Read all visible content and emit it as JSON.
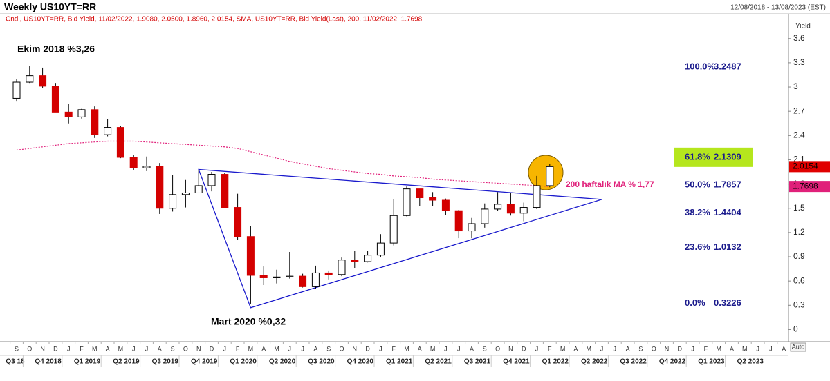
{
  "header": {
    "title": "Weekly US10YT=RR",
    "range": "12/08/2018 - 13/08/2023 (EST)"
  },
  "chart_data": {
    "type": "candlestick",
    "legend_text": "Cndl, US10YT=RR, Bid Yield, 11/02/2022, 1.9080, 2.0500, 1.8960, 2.0154, SMA, US10YT=RR, Bid Yield(Last),  200, 11/02/2022, 1.7698",
    "y_axis_label": "Yield",
    "auto_label": "Auto",
    "x": [
      "2018-09",
      "2018-10",
      "2018-11",
      "2018-12",
      "2019-01",
      "2019-02",
      "2019-03",
      "2019-04",
      "2019-05",
      "2019-06",
      "2019-07",
      "2019-08",
      "2019-09",
      "2019-10",
      "2019-11",
      "2019-12",
      "2020-01",
      "2020-02",
      "2020-03",
      "2020-04",
      "2020-05",
      "2020-06",
      "2020-07",
      "2020-08",
      "2020-09",
      "2020-10",
      "2020-11",
      "2020-12",
      "2021-01",
      "2021-02",
      "2021-03",
      "2021-04",
      "2021-05",
      "2021-06",
      "2021-07",
      "2021-08",
      "2021-09",
      "2021-10",
      "2021-11",
      "2021-12",
      "2022-01",
      "2022-02"
    ],
    "open": [
      2.86,
      3.06,
      3.14,
      3.01,
      2.69,
      2.63,
      2.72,
      2.41,
      2.5,
      2.13,
      2.0,
      2.02,
      1.5,
      1.67,
      1.69,
      1.78,
      1.92,
      1.51,
      1.15,
      0.67,
      0.64,
      0.65,
      0.66,
      0.53,
      0.7,
      0.68,
      0.86,
      0.84,
      0.92,
      1.07,
      1.41,
      1.74,
      1.63,
      1.6,
      1.47,
      1.22,
      1.31,
      1.49,
      1.55,
      1.44,
      1.51,
      1.78
    ],
    "high": [
      3.1,
      3.26,
      3.24,
      3.05,
      2.79,
      2.73,
      2.76,
      2.6,
      2.52,
      2.16,
      2.14,
      2.06,
      1.91,
      1.85,
      1.97,
      1.95,
      1.94,
      1.68,
      1.28,
      0.78,
      0.74,
      0.96,
      0.69,
      0.79,
      0.73,
      0.89,
      0.97,
      0.97,
      1.18,
      1.61,
      1.77,
      1.74,
      1.7,
      1.62,
      1.48,
      1.38,
      1.56,
      1.7,
      1.69,
      1.57,
      1.9,
      2.05
    ],
    "low": [
      2.82,
      3.05,
      2.99,
      2.69,
      2.55,
      2.61,
      2.37,
      2.39,
      2.12,
      1.97,
      1.96,
      1.43,
      1.46,
      1.51,
      1.69,
      1.71,
      1.51,
      1.11,
      0.32,
      0.55,
      0.57,
      0.63,
      0.52,
      0.5,
      0.62,
      0.66,
      0.76,
      0.83,
      0.9,
      1.04,
      1.4,
      1.53,
      1.53,
      1.42,
      1.13,
      1.13,
      1.26,
      1.47,
      1.41,
      1.34,
      1.49,
      1.76
    ],
    "close": [
      3.06,
      3.14,
      3.01,
      2.69,
      2.63,
      2.72,
      2.41,
      2.5,
      2.13,
      2.0,
      2.02,
      1.5,
      1.67,
      1.69,
      1.78,
      1.92,
      1.51,
      1.15,
      0.67,
      0.64,
      0.65,
      0.66,
      0.53,
      0.7,
      0.68,
      0.86,
      0.84,
      0.92,
      1.07,
      1.41,
      1.74,
      1.63,
      1.6,
      1.47,
      1.22,
      1.31,
      1.49,
      1.55,
      1.44,
      1.51,
      1.78,
      2.0154
    ],
    "up_color": "#ffffff",
    "down_color": "#d40000",
    "close_tag_color": "#e00000",
    "sma": {
      "color": "#e0207a",
      "values": [
        2.22,
        2.24,
        2.26,
        2.28,
        2.3,
        2.31,
        2.32,
        2.33,
        2.33,
        2.33,
        2.32,
        2.31,
        2.3,
        2.29,
        2.28,
        2.27,
        2.26,
        2.24,
        2.2,
        2.16,
        2.12,
        2.08,
        2.05,
        2.02,
        1.99,
        1.97,
        1.95,
        1.93,
        1.92,
        1.9,
        1.89,
        1.88,
        1.86,
        1.85,
        1.84,
        1.83,
        1.82,
        1.81,
        1.8,
        1.79,
        1.78,
        1.7698
      ]
    },
    "ylim": [
      -0.15,
      3.82
    ],
    "yticks": [
      0,
      0.3,
      0.6,
      0.9,
      1.2,
      1.5,
      1.8,
      2.1,
      2.4,
      2.7,
      3,
      3.3,
      3.6
    ],
    "month_labels": [
      "S",
      "O",
      "N",
      "D",
      "J",
      "F",
      "M",
      "A",
      "M",
      "J",
      "J",
      "A",
      "S",
      "O",
      "N",
      "D",
      "J",
      "F",
      "M",
      "A",
      "M",
      "J",
      "J",
      "A",
      "S",
      "O",
      "N",
      "D",
      "J",
      "F",
      "M",
      "A",
      "M",
      "J",
      "J",
      "A",
      "S",
      "O",
      "N",
      "D",
      "J",
      "F",
      "M",
      "A",
      "M",
      "J",
      "J",
      "A",
      "S",
      "O",
      "N",
      "D",
      "J",
      "F",
      "M",
      "A",
      "M",
      "J",
      "J",
      "A"
    ],
    "quarter_labels": [
      "Q3 18",
      "Q4 2018",
      "Q1 2019",
      "Q2 2019",
      "Q3 2019",
      "Q4 2019",
      "Q1 2020",
      "Q2 2020",
      "Q3 2020",
      "Q4 2020",
      "Q1 2021",
      "Q2 2021",
      "Q3 2021",
      "Q4 2021",
      "Q1 2022",
      "Q2 2022",
      "Q3 2022",
      "Q4 2022",
      "Q1 2023",
      "Q2 2023"
    ],
    "trendline": {
      "color": "#1a1acc",
      "points": [
        {
          "x": "2019-11",
          "y": 1.98
        },
        {
          "x": "2020-03",
          "y": 0.27
        },
        {
          "x": "2022-06",
          "y": 1.61
        }
      ]
    },
    "fib_levels": [
      {
        "label": "100.0%",
        "value": 3.2487
      },
      {
        "label": "61.8%",
        "value": 2.1309
      },
      {
        "label": "50.0%",
        "value": 1.7857
      },
      {
        "label": "38.2%",
        "value": 1.4404
      },
      {
        "label": "23.6%",
        "value": 1.0132
      },
      {
        "label": "0.0%",
        "value": 0.3226
      }
    ],
    "fib_highlight": 1,
    "fib_highlight_color": "#b5e61d",
    "annotations": [
      {
        "text": "Ekim 2018 %3,26"
      },
      {
        "text": "Mart 2020 %0,32"
      },
      {
        "text": "200 haftalık MA % 1,77",
        "color": "#e0207a"
      }
    ]
  }
}
